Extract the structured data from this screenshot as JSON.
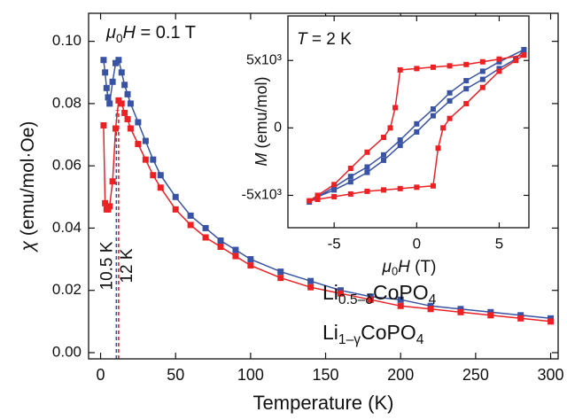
{
  "chart_data": [
    {
      "type": "line",
      "marker": "square",
      "annotation": "μ0H = 0.1 T",
      "xlabel": "Temperature (K)",
      "ylabel": "χ (emu/mol·Oe)",
      "x": [
        2,
        3,
        4,
        5,
        6,
        8,
        10,
        12,
        14,
        16,
        18,
        20,
        25,
        30,
        35,
        40,
        50,
        60,
        70,
        80,
        90,
        100,
        120,
        140,
        160,
        180,
        200,
        220,
        240,
        260,
        280,
        300
      ],
      "series": [
        {
          "name": "Li0.5–δCoPO4",
          "color": "#3953a4",
          "values": [
            0.094,
            0.09,
            0.085,
            0.082,
            0.08,
            0.087,
            0.093,
            0.094,
            0.09,
            0.086,
            0.083,
            0.08,
            0.074,
            0.068,
            0.062,
            0.057,
            0.05,
            0.044,
            0.04,
            0.036,
            0.033,
            0.03,
            0.026,
            0.023,
            0.02,
            0.018,
            0.017,
            0.015,
            0.014,
            0.013,
            0.012,
            0.011
          ]
        },
        {
          "name": "Li1–γCoPO4",
          "color": "#ed2024",
          "values": [
            0.073,
            0.048,
            0.046,
            0.046,
            0.047,
            0.055,
            0.072,
            0.081,
            0.08,
            0.077,
            0.075,
            0.072,
            0.067,
            0.062,
            0.057,
            0.053,
            0.046,
            0.041,
            0.037,
            0.034,
            0.031,
            0.028,
            0.024,
            0.021,
            0.019,
            0.017,
            0.015,
            0.014,
            0.013,
            0.012,
            0.011,
            0.01
          ]
        }
      ],
      "transitions": [
        {
          "label": "10.5 K",
          "x": 10.5,
          "color": "#3953a4"
        },
        {
          "label": "12 K",
          "x": 12,
          "color": "#ed2024"
        }
      ],
      "xlim": [
        -8,
        305
      ],
      "ylim": [
        -0.002,
        0.109
      ],
      "xticks": [
        0,
        50,
        100,
        150,
        200,
        250,
        300
      ],
      "yticks": [
        {
          "value": 0,
          "label": "0.00"
        },
        0.02,
        0.04,
        0.06,
        0.08,
        {
          "value": 0.1,
          "label": "0.10"
        }
      ]
    },
    {
      "type": "line",
      "marker": "square",
      "annotation": "T = 2 K",
      "xlabel": "μ0H (T)",
      "ylabel": "M (emu/mol)",
      "series": [
        {
          "color": "#3953a4",
          "x": [
            6.5,
            5,
            4,
            3,
            2,
            1,
            0,
            -1,
            -2,
            -3,
            -4,
            -5,
            -6,
            -6.5,
            -6,
            -5,
            -4,
            -3,
            -2,
            -1,
            0,
            1,
            2,
            3,
            4,
            5,
            6,
            6.5
          ],
          "values": [
            5800,
            4900,
            4200,
            3500,
            2600,
            1400,
            300,
            -900,
            -2000,
            -2900,
            -3600,
            -4400,
            -5100,
            -5500,
            -5100,
            -4600,
            -4000,
            -3300,
            -2400,
            -1300,
            -300,
            900,
            2000,
            2900,
            3600,
            4400,
            5100,
            5800
          ]
        },
        {
          "color": "#ed2024",
          "x": [
            6.5,
            5,
            4,
            3,
            2,
            1,
            0,
            -1,
            -1.3,
            -1.6,
            -2,
            -3,
            -4,
            -5,
            -6,
            -6.5,
            -6,
            -5,
            -4,
            -3,
            -2,
            -1,
            0,
            1,
            1.3,
            1.6,
            2,
            3,
            4,
            5,
            6,
            6.5
          ],
          "values": [
            5400,
            5100,
            4900,
            4700,
            4600,
            4500,
            4400,
            4300,
            1500,
            0,
            -700,
            -1800,
            -3000,
            -4200,
            -5000,
            -5400,
            -5300,
            -5100,
            -4900,
            -4700,
            -4600,
            -4500,
            -4400,
            -4300,
            -1500,
            0,
            700,
            1800,
            3000,
            4200,
            5000,
            5400
          ]
        }
      ],
      "xlim": [
        -7.8,
        6.8
      ],
      "ylim": [
        -7400,
        8300
      ],
      "xticks": [
        -5,
        0,
        5
      ],
      "yticks": [
        {
          "value": -5000,
          "label": "-5x10³"
        },
        0,
        {
          "value": 5000,
          "label": "5x10³"
        }
      ]
    }
  ]
}
